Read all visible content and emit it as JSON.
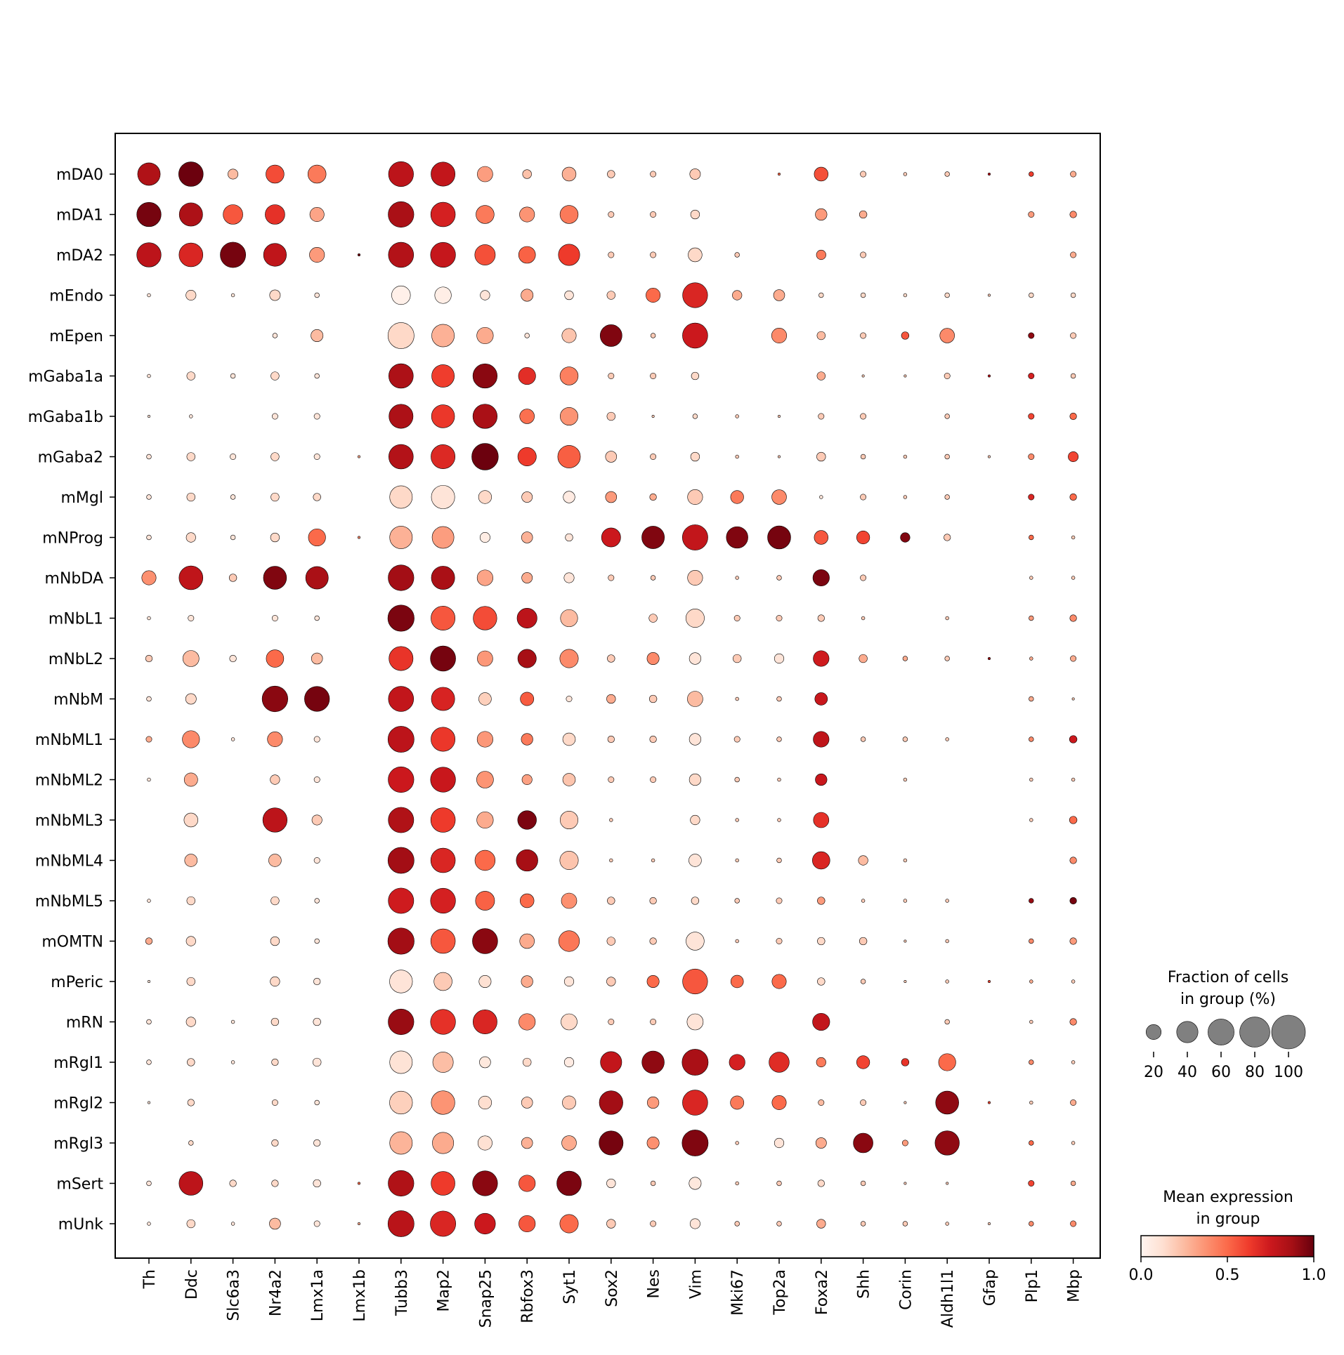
{
  "chart_data": {
    "type": "dotplot",
    "title": "",
    "xlabel": "",
    "ylabel": "",
    "genes": [
      "Th",
      "Ddc",
      "Slc6a3",
      "Nr4a2",
      "Lmx1a",
      "Lmx1b",
      "Tubb3",
      "Map2",
      "Snap25",
      "Rbfox3",
      "Syt1",
      "Sox2",
      "Nes",
      "Vim",
      "Mki67",
      "Top2a",
      "Foxa2",
      "Shh",
      "Corin",
      "Aldh1l1",
      "Gfap",
      "Plp1",
      "Mbp"
    ],
    "groups": [
      "mDA0",
      "mDA1",
      "mDA2",
      "mEndo",
      "mEpen",
      "mGaba1a",
      "mGaba1b",
      "mGaba2",
      "mMgl",
      "mNProg",
      "mNbDA",
      "mNbL1",
      "mNbL2",
      "mNbM",
      "mNbML1",
      "mNbML2",
      "mNbML3",
      "mNbML4",
      "mNbML5",
      "mOMTN",
      "mPeric",
      "mRN",
      "mRgl1",
      "mRgl2",
      "mRgl3",
      "mSert",
      "mUnk"
    ],
    "fraction_pct": [
      [
        45,
        53,
        9,
        29,
        29,
        0,
        55,
        51,
        21,
        7,
        17,
        5,
        3,
        10,
        0,
        0.5,
        17,
        3,
        1,
        2,
        0.5,
        2,
        3
      ],
      [
        52,
        48,
        34,
        34,
        18,
        0,
        58,
        53,
        29,
        20,
        29,
        3,
        3,
        7,
        0,
        0,
        12,
        5,
        0,
        0,
        0,
        3,
        4
      ],
      [
        52,
        50,
        57,
        46,
        20,
        0.5,
        56,
        55,
        37,
        25,
        40,
        3,
        3,
        17,
        2,
        0,
        8,
        3,
        0,
        0,
        0,
        0,
        3
      ],
      [
        1,
        9,
        1,
        10,
        2,
        0,
        31,
        24,
        8,
        13,
        7,
        6,
        18,
        55,
        8,
        11,
        2,
        2,
        1,
        2,
        0.5,
        2,
        2
      ],
      [
        0,
        0,
        0,
        2,
        13,
        0,
        60,
        45,
        24,
        2,
        18,
        42,
        2,
        56,
        0,
        20,
        6,
        3,
        5,
        19,
        0,
        3,
        3
      ],
      [
        1,
        6,
        2,
        6,
        2,
        0,
        53,
        45,
        52,
        26,
        29,
        3,
        3,
        5,
        0,
        0,
        6,
        0.5,
        0.5,
        3,
        0.5,
        3,
        2
      ],
      [
        0.5,
        1,
        0,
        3,
        3,
        0,
        51,
        47,
        52,
        19,
        28,
        6,
        0.5,
        2,
        1,
        0.5,
        3,
        3,
        0,
        2,
        0,
        3,
        4
      ],
      [
        2,
        6,
        3,
        6,
        3,
        0.5,
        53,
        51,
        62,
        30,
        45,
        11,
        3,
        7,
        1,
        0.5,
        7,
        2,
        1,
        2,
        0.5,
        3,
        9
      ],
      [
        2,
        6,
        2,
        6,
        5,
        0,
        45,
        48,
        15,
        10,
        12,
        11,
        4,
        20,
        15,
        19,
        1,
        3,
        1,
        2,
        0,
        3,
        4
      ],
      [
        2,
        8,
        2,
        7,
        26,
        0.5,
        45,
        42,
        9,
        11,
        5,
        32,
        45,
        57,
        41,
        47,
        17,
        15,
        8,
        4,
        0,
        2,
        1
      ],
      [
        18,
        50,
        5,
        47,
        45,
        0,
        58,
        48,
        22,
        10,
        9,
        3,
        2,
        20,
        1,
        2,
        24,
        3,
        0,
        0,
        0,
        1,
        1
      ],
      [
        1,
        3,
        0,
        3,
        2,
        0,
        61,
        51,
        49,
        35,
        26,
        0,
        6,
        30,
        3,
        3,
        4,
        1,
        0,
        1,
        0,
        2,
        4
      ],
      [
        4,
        23,
        4,
        27,
        11,
        0,
        51,
        56,
        21,
        30,
        30,
        5,
        13,
        12,
        6,
        8,
        22,
        6,
        2,
        2,
        0.5,
        1,
        3
      ],
      [
        2,
        10,
        0,
        58,
        55,
        0,
        56,
        48,
        14,
        16,
        3,
        7,
        5,
        21,
        1,
        2,
        14,
        0,
        0,
        0,
        0,
        2,
        0.5
      ],
      [
        3,
        26,
        1,
        20,
        3,
        0,
        60,
        51,
        22,
        12,
        14,
        4,
        4,
        12,
        3,
        2,
        22,
        2,
        2,
        1,
        0,
        2,
        5
      ],
      [
        1,
        16,
        0,
        8,
        3,
        0,
        58,
        55,
        25,
        9,
        14,
        3,
        3,
        12,
        2,
        1,
        12,
        0,
        1,
        0,
        0,
        1,
        1
      ],
      [
        0,
        17,
        0,
        52,
        9,
        0,
        57,
        53,
        24,
        31,
        28,
        1,
        0,
        8,
        1,
        1,
        21,
        0,
        0,
        0,
        0,
        1,
        5
      ],
      [
        0,
        14,
        0,
        14,
        3,
        0,
        60,
        53,
        36,
        41,
        30,
        1,
        1,
        14,
        1,
        2,
        27,
        8,
        1,
        0,
        0,
        0,
        4
      ],
      [
        1,
        6,
        0,
        6,
        2,
        0,
        57,
        55,
        32,
        17,
        21,
        5,
        4,
        5,
        2,
        3,
        5,
        1,
        1,
        1,
        0,
        2,
        4
      ],
      [
        4,
        8,
        0,
        7,
        2,
        0,
        61,
        53,
        56,
        19,
        38,
        6,
        4,
        29,
        1,
        3,
        5,
        5,
        0.5,
        1,
        0,
        2,
        4
      ],
      [
        0.5,
        6,
        0,
        8,
        4,
        0,
        46,
        29,
        13,
        12,
        8,
        7,
        13,
        55,
        14,
        18,
        5,
        2,
        0.5,
        1,
        0.5,
        1,
        1
      ],
      [
        2,
        8,
        1,
        5,
        5,
        0,
        58,
        55,
        51,
        24,
        23,
        3,
        3,
        23,
        0,
        0,
        26,
        0,
        0,
        2,
        0,
        1,
        4
      ],
      [
        2,
        5,
        1,
        4,
        6,
        0,
        45,
        37,
        11,
        6,
        8,
        40,
        44,
        60,
        22,
        36,
        8,
        15,
        5,
        26,
        0,
        2,
        1
      ],
      [
        0.5,
        4,
        0,
        3,
        2,
        0,
        46,
        49,
        15,
        11,
        16,
        49,
        12,
        56,
        16,
        18,
        3,
        3,
        0.5,
        47,
        0.5,
        1,
        3
      ],
      [
        0,
        2,
        0,
        4,
        4,
        0,
        45,
        40,
        18,
        11,
        19,
        51,
        13,
        60,
        1,
        8,
        10,
        34,
        3,
        52,
        0,
        2,
        1
      ],
      [
        2,
        50,
        4,
        4,
        5,
        0.5,
        58,
        50,
        55,
        24,
        53,
        7,
        2,
        13,
        1,
        2,
        4,
        2,
        0.5,
        0.5,
        0,
        3,
        2
      ],
      [
        1,
        6,
        1,
        11,
        3,
        0.5,
        60,
        57,
        38,
        24,
        30,
        7,
        3,
        9,
        2,
        2,
        7,
        2,
        2,
        1,
        0.5,
        2,
        3
      ]
    ],
    "mean_expr": [
      [
        0.84,
        0.99,
        0.25,
        0.58,
        0.45,
        0,
        0.8,
        0.78,
        0.34,
        0.23,
        0.28,
        0.2,
        0.2,
        0.2,
        0,
        0.5,
        0.57,
        0.2,
        0.2,
        0.2,
        0.8,
        0.62,
        0.3
      ],
      [
        0.97,
        0.85,
        0.55,
        0.66,
        0.32,
        0,
        0.86,
        0.72,
        0.45,
        0.37,
        0.45,
        0.2,
        0.2,
        0.15,
        0,
        0,
        0.35,
        0.3,
        0,
        0,
        0,
        0.35,
        0.4
      ],
      [
        0.8,
        0.7,
        0.97,
        0.79,
        0.35,
        0.97,
        0.83,
        0.77,
        0.57,
        0.52,
        0.63,
        0.2,
        0.2,
        0.15,
        0.2,
        0,
        0.45,
        0.2,
        0,
        0,
        0,
        0,
        0.3
      ],
      [
        0.1,
        0.15,
        0.1,
        0.15,
        0.1,
        0,
        0.03,
        0.04,
        0.1,
        0.3,
        0.1,
        0.2,
        0.5,
        0.7,
        0.3,
        0.3,
        0.15,
        0.15,
        0.15,
        0.15,
        0.2,
        0.15,
        0.15
      ],
      [
        0,
        0,
        0,
        0.1,
        0.25,
        0,
        0.15,
        0.28,
        0.3,
        0.1,
        0.22,
        0.95,
        0.2,
        0.75,
        0,
        0.4,
        0.25,
        0.2,
        0.55,
        0.4,
        0,
        0.92,
        0.2
      ],
      [
        0.1,
        0.15,
        0.1,
        0.15,
        0.1,
        0,
        0.85,
        0.62,
        0.93,
        0.67,
        0.43,
        0.2,
        0.2,
        0.15,
        0,
        0,
        0.3,
        0.2,
        0.2,
        0.2,
        0.8,
        0.72,
        0.2
      ],
      [
        0.1,
        0.1,
        0,
        0.1,
        0.1,
        0,
        0.85,
        0.64,
        0.86,
        0.48,
        0.37,
        0.2,
        0.2,
        0.15,
        0.2,
        0.2,
        0.2,
        0.2,
        0,
        0.2,
        0,
        0.6,
        0.5
      ],
      [
        0.1,
        0.15,
        0.1,
        0.15,
        0.1,
        0.3,
        0.83,
        0.69,
        0.99,
        0.63,
        0.53,
        0.2,
        0.2,
        0.15,
        0.2,
        0.2,
        0.2,
        0.2,
        0.2,
        0.2,
        0.2,
        0.4,
        0.6
      ],
      [
        0.1,
        0.15,
        0.1,
        0.15,
        0.15,
        0,
        0.15,
        0.1,
        0.15,
        0.2,
        0.06,
        0.35,
        0.3,
        0.2,
        0.45,
        0.4,
        0.1,
        0.2,
        0.2,
        0.2,
        0,
        0.7,
        0.5
      ],
      [
        0.1,
        0.15,
        0.1,
        0.15,
        0.5,
        0.4,
        0.28,
        0.34,
        0.05,
        0.28,
        0.1,
        0.75,
        0.95,
        0.78,
        0.95,
        0.97,
        0.55,
        0.6,
        0.95,
        0.2,
        0,
        0.5,
        0.2
      ],
      [
        0.38,
        0.79,
        0.2,
        0.95,
        0.86,
        0,
        0.88,
        0.86,
        0.32,
        0.3,
        0.1,
        0.2,
        0.2,
        0.2,
        0.2,
        0.2,
        0.96,
        0.2,
        0,
        0,
        0,
        0.2,
        0.2
      ],
      [
        0.1,
        0.1,
        0,
        0.1,
        0.1,
        0,
        0.96,
        0.55,
        0.58,
        0.8,
        0.25,
        0,
        0.2,
        0.15,
        0.2,
        0.2,
        0.2,
        0.2,
        0,
        0.2,
        0,
        0.35,
        0.4
      ],
      [
        0.2,
        0.25,
        0.1,
        0.5,
        0.25,
        0,
        0.65,
        0.97,
        0.36,
        0.87,
        0.4,
        0.2,
        0.4,
        0.1,
        0.2,
        0.1,
        0.74,
        0.3,
        0.3,
        0.2,
        0.9,
        0.3,
        0.3
      ],
      [
        0.1,
        0.15,
        0,
        0.93,
        0.97,
        0,
        0.78,
        0.71,
        0.18,
        0.54,
        0.1,
        0.3,
        0.2,
        0.25,
        0.2,
        0.2,
        0.76,
        0,
        0,
        0,
        0,
        0.3,
        0.2
      ],
      [
        0.3,
        0.4,
        0.1,
        0.4,
        0.1,
        0,
        0.8,
        0.64,
        0.36,
        0.45,
        0.15,
        0.2,
        0.2,
        0.1,
        0.2,
        0.2,
        0.79,
        0.2,
        0.2,
        0.2,
        0,
        0.4,
        0.75
      ],
      [
        0.1,
        0.3,
        0,
        0.2,
        0.1,
        0,
        0.75,
        0.76,
        0.37,
        0.33,
        0.22,
        0.2,
        0.2,
        0.15,
        0.2,
        0.2,
        0.76,
        0,
        0.2,
        0,
        0,
        0.2,
        0.2
      ],
      [
        0,
        0.15,
        0,
        0.8,
        0.2,
        0,
        0.84,
        0.63,
        0.3,
        0.96,
        0.2,
        0.2,
        0,
        0.15,
        0.2,
        0.2,
        0.66,
        0,
        0,
        0,
        0,
        0.2,
        0.5
      ],
      [
        0,
        0.25,
        0,
        0.25,
        0.1,
        0,
        0.88,
        0.7,
        0.5,
        0.87,
        0.22,
        0.2,
        0.2,
        0.1,
        0.2,
        0.2,
        0.7,
        0.25,
        0.2,
        0,
        0,
        0,
        0.4
      ],
      [
        0.1,
        0.15,
        0,
        0.15,
        0.1,
        0,
        0.74,
        0.72,
        0.52,
        0.5,
        0.38,
        0.2,
        0.2,
        0.15,
        0.2,
        0.2,
        0.35,
        0.2,
        0.2,
        0.2,
        0,
        0.9,
        0.97
      ],
      [
        0.3,
        0.15,
        0.1,
        0.15,
        0.1,
        0,
        0.88,
        0.55,
        0.93,
        0.3,
        0.46,
        0.2,
        0.2,
        0.1,
        0.2,
        0.2,
        0.15,
        0.2,
        0.2,
        0.2,
        0,
        0.4,
        0.35
      ],
      [
        0.1,
        0.15,
        0,
        0.15,
        0.1,
        0,
        0.1,
        0.2,
        0.12,
        0.3,
        0.1,
        0.2,
        0.5,
        0.55,
        0.5,
        0.5,
        0.15,
        0.2,
        0.2,
        0.2,
        0.6,
        0.3,
        0.2
      ],
      [
        0.1,
        0.15,
        0.1,
        0.15,
        0.1,
        0,
        0.9,
        0.66,
        0.7,
        0.4,
        0.15,
        0.2,
        0.2,
        0.1,
        0,
        0,
        0.78,
        0,
        0,
        0.2,
        0,
        0.2,
        0.4
      ],
      [
        0.1,
        0.15,
        0.1,
        0.15,
        0.1,
        0,
        0.11,
        0.24,
        0.08,
        0.15,
        0.06,
        0.78,
        0.92,
        0.86,
        0.72,
        0.68,
        0.45,
        0.6,
        0.65,
        0.5,
        0,
        0.4,
        0.2
      ],
      [
        0.1,
        0.15,
        0.1,
        0.15,
        0.1,
        0,
        0.18,
        0.37,
        0.13,
        0.2,
        0.2,
        0.88,
        0.35,
        0.7,
        0.45,
        0.5,
        0.25,
        0.2,
        0.2,
        0.92,
        0.6,
        0.2,
        0.3
      ],
      [
        0,
        0.15,
        0,
        0.15,
        0.1,
        0,
        0.27,
        0.3,
        0.12,
        0.28,
        0.3,
        0.97,
        0.38,
        0.95,
        0.2,
        0.1,
        0.3,
        0.93,
        0.35,
        0.92,
        0,
        0.5,
        0.2
      ],
      [
        0.1,
        0.8,
        0.15,
        0.15,
        0.1,
        0.5,
        0.84,
        0.63,
        0.93,
        0.55,
        0.96,
        0.1,
        0.2,
        0.08,
        0.2,
        0.2,
        0.15,
        0.2,
        0.2,
        0.2,
        0,
        0.6,
        0.3
      ],
      [
        0.1,
        0.15,
        0.1,
        0.25,
        0.1,
        0.3,
        0.81,
        0.7,
        0.75,
        0.55,
        0.5,
        0.2,
        0.2,
        0.1,
        0.2,
        0.2,
        0.3,
        0.2,
        0.2,
        0.2,
        0.2,
        0.4,
        0.4
      ]
    ],
    "size_legend": {
      "title_line1": "Fraction of cells",
      "title_line2": "in group (%)",
      "ticks": [
        20,
        40,
        60,
        80,
        100
      ]
    },
    "color_legend": {
      "title_line1": "Mean expression",
      "title_line2": "in group",
      "colormap": "Reds",
      "ticks": [
        "0.0",
        "0.5",
        "1.0"
      ],
      "range": [
        0,
        1
      ]
    },
    "colors": {
      "dot_stroke": "#000000",
      "legend_dot": "#808080",
      "cmap_low": "#fff5f0",
      "cmap_high": "#67000d"
    },
    "grid": false
  }
}
